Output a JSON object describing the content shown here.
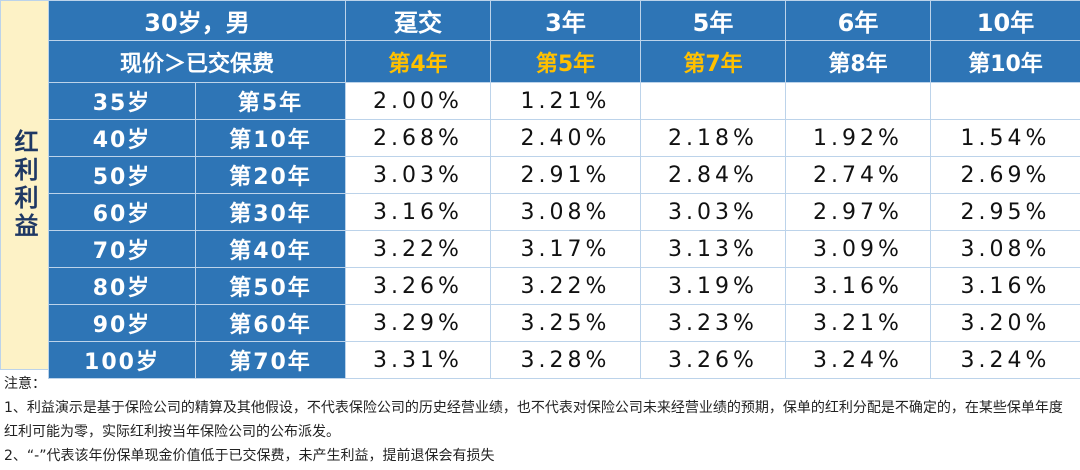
{
  "table": {
    "side_label": "红利利益",
    "header_rows": [
      [
        "30岁，男",
        "趸交",
        "3年",
        "5年",
        "6年",
        "10年"
      ],
      [
        "现价＞已交保费",
        "第4年",
        "第5年",
        "第7年",
        "第8年",
        "第10年"
      ]
    ],
    "rows": [
      [
        "35岁",
        "第5年",
        "2.00%",
        "1.21%",
        null,
        null,
        null
      ],
      [
        "40岁",
        "第10年",
        "2.68%",
        "2.40%",
        "2.18%",
        "1.92%",
        "1.54%"
      ],
      [
        "50岁",
        "第20年",
        "3.03%",
        "2.91%",
        "2.84%",
        "2.74%",
        "2.69%"
      ],
      [
        "60岁",
        "第30年",
        "3.16%",
        "3.08%",
        "3.03%",
        "2.97%",
        "2.95%"
      ],
      [
        "70岁",
        "第40年",
        "3.22%",
        "3.17%",
        "3.13%",
        "3.09%",
        "3.08%"
      ],
      [
        "80岁",
        "第50年",
        "3.26%",
        "3.22%",
        "3.19%",
        "3.16%",
        "3.16%"
      ],
      [
        "90岁",
        "第60年",
        "3.29%",
        "3.25%",
        "3.23%",
        "3.21%",
        "3.20%"
      ],
      [
        "100岁",
        "第70年",
        "3.31%",
        "3.28%",
        "3.26%",
        "3.24%",
        "3.24%"
      ]
    ],
    "notes": [
      "注意：",
      "1、利益演示是基于保险公司的精算及其他假设，不代表保险公司的历史经营业绩，也不代表对保险公司未来经营业绩的预期，保单的红利分配是不确定的，在某些保单年度红利可能为零，实际红利按当年保险公司的公布派发。",
      "2、“-”代表该年份保单现金价值低于已交保费，未产生利益，提前退保会有损失"
    ]
  }
}
